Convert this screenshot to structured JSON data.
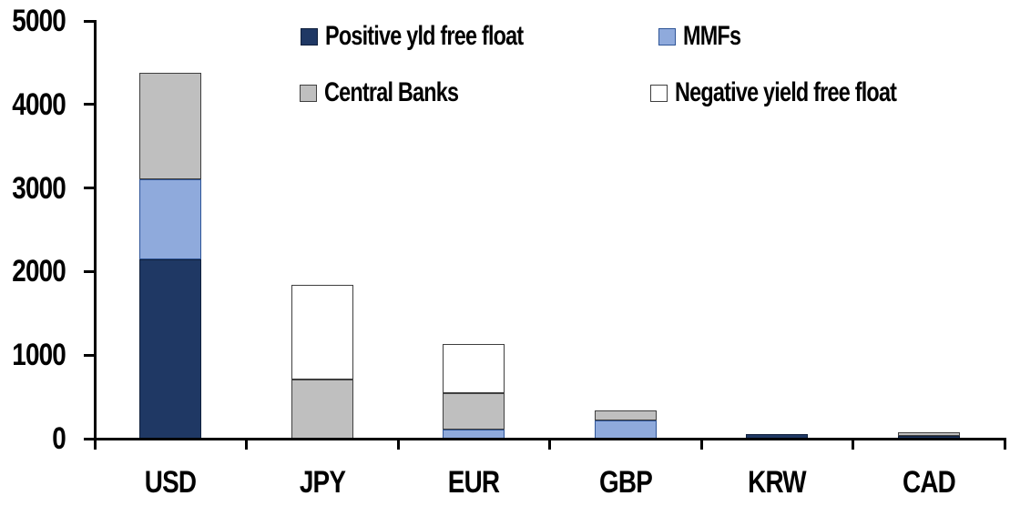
{
  "chart_data": {
    "type": "bar",
    "stacked": true,
    "title": "",
    "xlabel": "",
    "ylabel": "",
    "categories": [
      "USD",
      "JPY",
      "EUR",
      "GBP",
      "KRW",
      "CAD"
    ],
    "series": [
      {
        "name": "Positive yld free float",
        "fill": "#1F3864",
        "border": "#10203C",
        "values": [
          2150,
          0,
          0,
          0,
          50,
          30
        ]
      },
      {
        "name": "MMFs",
        "fill": "#8FAADC",
        "border": "#2F5597",
        "values": [
          950,
          0,
          110,
          220,
          0,
          0
        ]
      },
      {
        "name": "Central Banks",
        "fill": "#BFBFBF",
        "border": "#3F3F3F",
        "values": [
          1280,
          710,
          430,
          120,
          0,
          45
        ]
      },
      {
        "name": "Negative yield free float",
        "fill": "#FFFFFF",
        "border": "#3F3F3F",
        "values": [
          0,
          1130,
          590,
          0,
          0,
          0
        ]
      }
    ],
    "totals": [
      4380,
      1840,
      1130,
      340,
      50,
      75
    ],
    "ylim": [
      0,
      5000
    ],
    "yticks": [
      0,
      1000,
      2000,
      3000,
      4000,
      5000
    ],
    "grid": false,
    "legend_position": "top",
    "axis_color": "#000000",
    "background": "#FFFFFF"
  }
}
